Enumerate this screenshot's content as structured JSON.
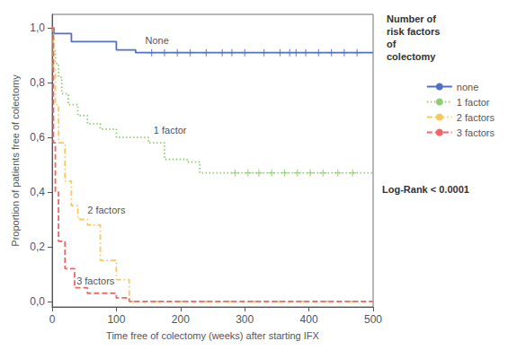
{
  "chart_data": {
    "type": "line",
    "xlabel": "Time free of colectomy (weeks) after starting IFX",
    "ylabel": "Proportion of patients free of colectomy",
    "xlim": [
      0,
      500
    ],
    "ylim": [
      -0.02,
      1.05
    ],
    "xticks": [
      0,
      100,
      200,
      300,
      400,
      500
    ],
    "yticks": [
      {
        "value": 0.0,
        "label": "0,0"
      },
      {
        "value": 0.2,
        "label": "0,2"
      },
      {
        "value": 0.4,
        "label": "0,4"
      },
      {
        "value": 0.6,
        "label": "0,6"
      },
      {
        "value": 0.8,
        "label": "0,8"
      },
      {
        "value": 1.0,
        "label": "1,0"
      }
    ],
    "grid": false,
    "legend": "right",
    "legend_title": "Number of\nrisk factors\nof\ncolectomy",
    "logrank_text": "Log-Rank < 0.0001",
    "series": [
      {
        "name": "none",
        "line_style": "solid",
        "x": [
          0,
          3,
          3,
          30,
          30,
          100,
          100,
          130,
          130,
          500
        ],
        "values": [
          1.0,
          1.0,
          0.98,
          0.98,
          0.95,
          0.95,
          0.92,
          0.92,
          0.91,
          0.91
        ],
        "censor_x": [
          155,
          175,
          195,
          215,
          240,
          265,
          280,
          300,
          330,
          355,
          370,
          380,
          395,
          415,
          435,
          455,
          475
        ],
        "censor_y": [
          0.91,
          0.91,
          0.91,
          0.91,
          0.91,
          0.91,
          0.91,
          0.91,
          0.91,
          0.91,
          0.91,
          0.91,
          0.91,
          0.91,
          0.91,
          0.91,
          0.91
        ]
      },
      {
        "name": "1 factor",
        "line_style": "dotted",
        "x": [
          0,
          2,
          2,
          5,
          5,
          10,
          10,
          15,
          15,
          25,
          25,
          40,
          40,
          55,
          55,
          75,
          75,
          100,
          100,
          150,
          150,
          175,
          175,
          210,
          210,
          230,
          230,
          280,
          280,
          500
        ],
        "values": [
          1.0,
          1.0,
          0.92,
          0.92,
          0.87,
          0.87,
          0.82,
          0.82,
          0.76,
          0.76,
          0.72,
          0.72,
          0.68,
          0.68,
          0.65,
          0.65,
          0.63,
          0.63,
          0.6,
          0.6,
          0.58,
          0.58,
          0.52,
          0.52,
          0.51,
          0.51,
          0.47,
          0.47,
          0.47,
          0.47
        ],
        "censor_x": [
          285,
          305,
          322,
          342,
          362,
          382,
          402,
          422,
          445,
          468
        ],
        "censor_y": [
          0.47,
          0.47,
          0.47,
          0.47,
          0.47,
          0.47,
          0.47,
          0.47,
          0.47,
          0.47
        ]
      },
      {
        "name": "2 factors",
        "line_style": "dashdot",
        "x": [
          0,
          2,
          2,
          5,
          5,
          10,
          10,
          20,
          20,
          30,
          30,
          40,
          40,
          55,
          55,
          75,
          75,
          100,
          100,
          120,
          120,
          500
        ],
        "values": [
          1.0,
          1.0,
          0.85,
          0.85,
          0.72,
          0.72,
          0.58,
          0.58,
          0.44,
          0.44,
          0.35,
          0.35,
          0.3,
          0.3,
          0.28,
          0.28,
          0.15,
          0.15,
          0.08,
          0.08,
          0.0,
          0.0
        ]
      },
      {
        "name": "3 factors",
        "line_style": "dashed",
        "x": [
          0,
          2,
          2,
          5,
          5,
          10,
          10,
          20,
          20,
          35,
          35,
          55,
          55,
          100,
          100,
          120,
          120,
          500
        ],
        "values": [
          1.0,
          1.0,
          0.58,
          0.58,
          0.4,
          0.4,
          0.22,
          0.22,
          0.12,
          0.12,
          0.05,
          0.05,
          0.03,
          0.03,
          0.013,
          0.013,
          0.0,
          0.0
        ]
      }
    ],
    "annotations": [
      {
        "text": "None",
        "x": 145,
        "y": 0.955
      },
      {
        "text": "1 factor",
        "x": 158,
        "y": 0.625
      },
      {
        "text": "2 factors",
        "x": 55,
        "y": 0.335
      },
      {
        "text": "3 factors",
        "x": 38,
        "y": 0.075
      }
    ]
  }
}
